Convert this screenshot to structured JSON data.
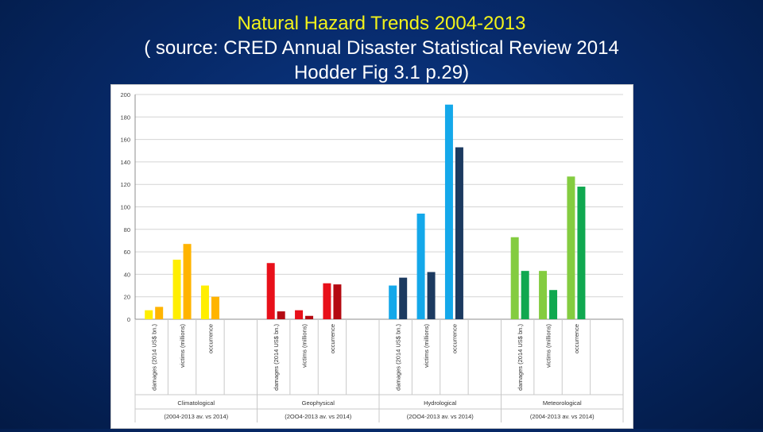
{
  "slide": {
    "title": "Natural Hazard Trends 2004-2013",
    "subtitle_line1": "( source: CRED Annual Disaster Statistical Review 2014",
    "subtitle_line2": "Hodder Fig 3.1 p.29)"
  },
  "chart_data": {
    "type": "bar",
    "ylim": [
      0,
      200
    ],
    "yticks": [
      0,
      20,
      40,
      60,
      80,
      100,
      120,
      140,
      160,
      180,
      200
    ],
    "grid": true,
    "legend": "none",
    "groups": [
      {
        "name": "Climatological",
        "period_label": "(2004-2013 av. vs 2014)",
        "colors": [
          "#ffee00",
          "#ffb400"
        ],
        "categories": [
          {
            "label": "damages (2014 US$ bn.)",
            "values": [
              8,
              11
            ]
          },
          {
            "label": "victims (millions)",
            "values": [
              53,
              67
            ]
          },
          {
            "label": "occurrence",
            "values": [
              30,
              20
            ]
          }
        ]
      },
      {
        "name": "Geophysical",
        "period_label": "(2OO4-2013 av. vs 2014)",
        "colors": [
          "#e8101a",
          "#b40a12"
        ],
        "categories": [
          {
            "label": "damages (2014 US$ bn.)",
            "values": [
              50,
              7
            ]
          },
          {
            "label": "victims (millions)",
            "values": [
              8,
              3
            ]
          },
          {
            "label": "occurrence",
            "values": [
              32,
              31
            ]
          }
        ]
      },
      {
        "name": "Hydrological",
        "period_label": "(2OO4-2013 av. vs 2014)",
        "colors": [
          "#14a8ea",
          "#1c3a60"
        ],
        "categories": [
          {
            "label": "damages (2014 US$ bn.)",
            "values": [
              30,
              37
            ]
          },
          {
            "label": "victims (millions)",
            "values": [
              94,
              42
            ]
          },
          {
            "label": "occurrence",
            "values": [
              191,
              153
            ]
          }
        ]
      },
      {
        "name": "Meteorological",
        "period_label": "(2004-2013 av. vs 2014)",
        "colors": [
          "#84cc40",
          "#10a850"
        ],
        "categories": [
          {
            "label": "damages (2014 US$ bn.)",
            "values": [
              73,
              43
            ]
          },
          {
            "label": "victims (millions)",
            "values": [
              43,
              26
            ]
          },
          {
            "label": "occurrence",
            "values": [
              127,
              118
            ]
          }
        ]
      }
    ]
  }
}
